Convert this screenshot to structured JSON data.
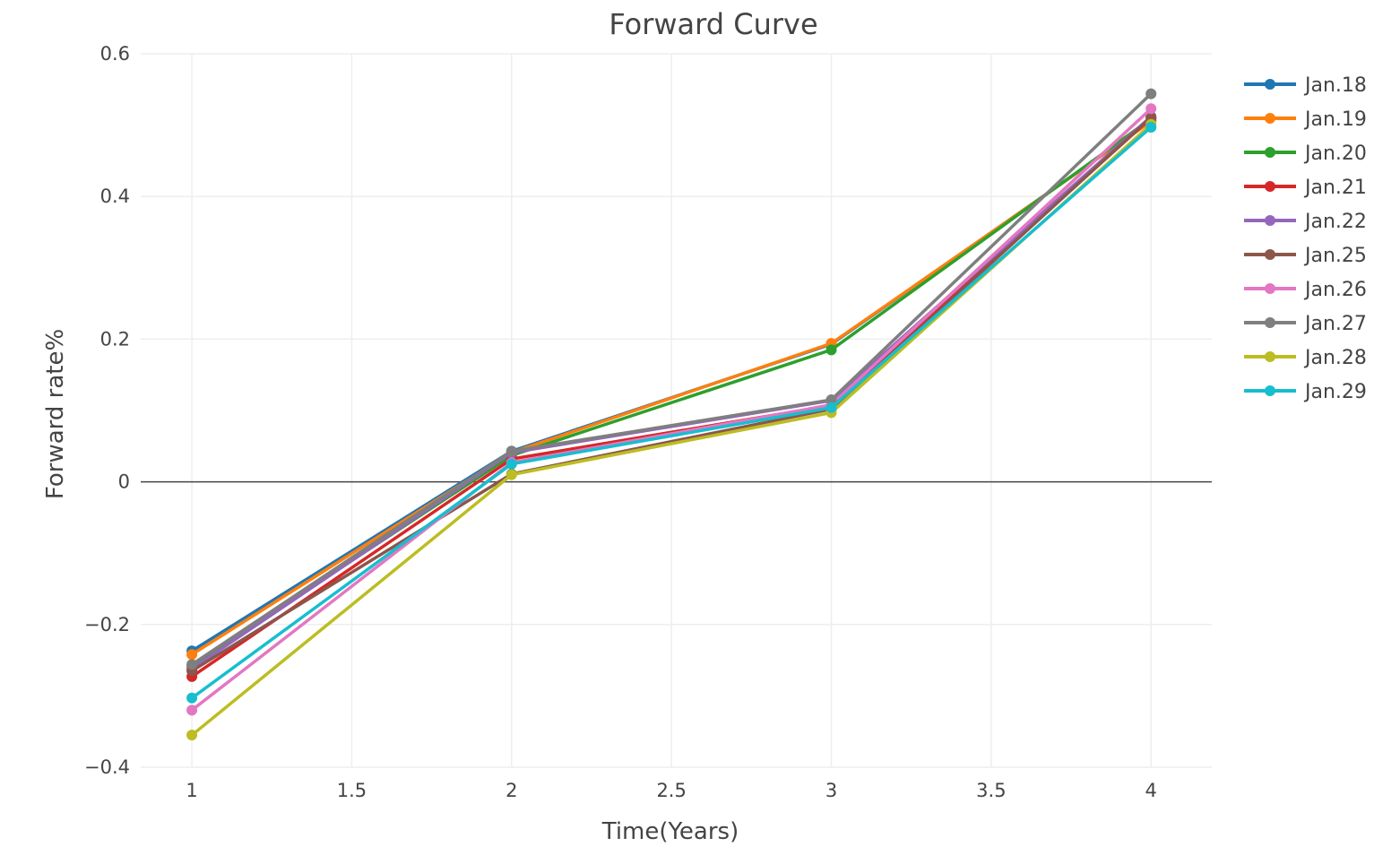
{
  "chart_data": {
    "type": "line",
    "title": "Forward Curve",
    "xlabel": "Time(Years)",
    "ylabel": "Forward rate%",
    "xlim": [
      0.84,
      4.19
    ],
    "ylim": [
      -0.4,
      0.6
    ],
    "xticks": [
      1,
      1.5,
      2,
      2.5,
      3,
      3.5,
      4
    ],
    "xtick_labels": [
      "1",
      "1.5",
      "2",
      "2.5",
      "3",
      "3.5",
      "4"
    ],
    "yticks": [
      -0.4,
      -0.2,
      0,
      0.2,
      0.4,
      0.6
    ],
    "ytick_labels": [
      "−0.4",
      "−0.2",
      "0",
      "0.2",
      "0.4",
      "0.6"
    ],
    "grid": true,
    "legend_position": "right",
    "x": [
      1,
      2,
      3,
      4
    ],
    "series": [
      {
        "name": "Jan.18",
        "color": "#1f77b4",
        "values": [
          -0.237,
          0.043,
          0.193,
          0.506
        ]
      },
      {
        "name": "Jan.19",
        "color": "#ff7f0e",
        "values": [
          -0.242,
          0.041,
          0.194,
          0.505
        ]
      },
      {
        "name": "Jan.20",
        "color": "#2ca02c",
        "values": [
          -0.258,
          0.037,
          0.185,
          0.509
        ]
      },
      {
        "name": "Jan.21",
        "color": "#d62728",
        "values": [
          -0.273,
          0.032,
          0.107,
          0.51
        ]
      },
      {
        "name": "Jan.22",
        "color": "#9467bd",
        "values": [
          -0.262,
          0.041,
          0.114,
          0.512
        ]
      },
      {
        "name": "Jan.25",
        "color": "#8c564b",
        "values": [
          -0.265,
          0.011,
          0.102,
          0.511
        ]
      },
      {
        "name": "Jan.26",
        "color": "#e377c2",
        "values": [
          -0.32,
          0.027,
          0.108,
          0.523
        ]
      },
      {
        "name": "Jan.27",
        "color": "#7f7f7f",
        "values": [
          -0.256,
          0.043,
          0.115,
          0.544
        ]
      },
      {
        "name": "Jan.28",
        "color": "#bcbd22",
        "values": [
          -0.355,
          0.01,
          0.097,
          0.501
        ]
      },
      {
        "name": "Jan.29",
        "color": "#17becf",
        "values": [
          -0.303,
          0.025,
          0.104,
          0.497
        ]
      }
    ]
  }
}
